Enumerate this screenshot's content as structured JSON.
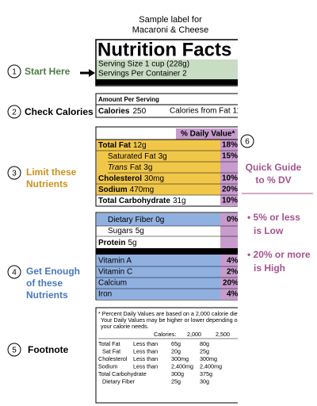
{
  "header": {
    "line1": "Sample label for",
    "line2": "Macaroni & Cheese"
  },
  "label": {
    "title": "Nutrition Facts",
    "serving_size": "Serving Size 1 cup (228g)",
    "servings": "Servings Per Container  2",
    "amount_per_serving": "Amount Per Serving",
    "calories_label": "Calories",
    "calories_value": "250",
    "calories_from_fat": "Calories from Fat 110",
    "dv_header": "% Daily Value*",
    "limit_rows": [
      {
        "name": "Total Fat",
        "amount": "12g",
        "dv": "18%"
      },
      {
        "name": "Saturated Fat",
        "amount": "3g",
        "dv": "15%"
      },
      {
        "name_italic": "Trans",
        "name": "Fat",
        "amount": "3g"
      },
      {
        "name": "Cholesterol",
        "amount": "30mg",
        "dv": "10%"
      },
      {
        "name": "Sodium",
        "amount": "470mg",
        "dv": "20%"
      },
      {
        "name": "Total Carbohydrate",
        "amount": "31g",
        "dv": "10%"
      }
    ],
    "enough_rows": [
      {
        "name": "Dietary Fiber",
        "amount": "0g",
        "dv": "0%"
      },
      {
        "name": "Sugars",
        "amount": "5g"
      },
      {
        "name": "Protein",
        "amount": "5g"
      }
    ],
    "vitamins": [
      {
        "name": "Vitamin A",
        "dv": "4%"
      },
      {
        "name": "Vitamin C",
        "dv": "2%"
      },
      {
        "name": "Calcium",
        "dv": "20%"
      },
      {
        "name": "Iron",
        "dv": "4%"
      }
    ],
    "footnote": {
      "lines": [
        "* Percent Daily Values are based on a 2,000 calorie diet.",
        "Your Daily Values may be higher or lower depending on",
        "your calorie needs."
      ],
      "header": [
        "Calories:",
        "2,000",
        "2,500"
      ],
      "rows": [
        [
          "Total Fat",
          "Less than",
          "65g",
          "80g"
        ],
        [
          "Sat Fat",
          "Less than",
          "20g",
          "25g"
        ],
        [
          "Cholesterol",
          "Less than",
          "300mg",
          "300mg"
        ],
        [
          "Sodium",
          "Less than",
          "2,400mg",
          "2,400mg"
        ],
        [
          "Total Carbohydrate",
          "",
          "300g",
          "375g"
        ],
        [
          "Dietary Fiber",
          "",
          "25g",
          "30g"
        ]
      ]
    }
  },
  "callouts": [
    {
      "number": "1",
      "lines": [
        "Start Here"
      ]
    },
    {
      "number": "2",
      "lines": [
        "Check Calories"
      ]
    },
    {
      "number": "3",
      "lines": [
        "Limit these",
        "Nutrients"
      ]
    },
    {
      "number": "4",
      "lines": [
        "Get Enough",
        "of these",
        "Nutrients"
      ]
    },
    {
      "number": "5",
      "lines": [
        "Footnote"
      ]
    },
    {
      "number": "6",
      "lines": [
        "Quick Guide",
        "to % DV"
      ]
    }
  ],
  "guide": [
    [
      "• 5% or less",
      "is Low"
    ],
    [
      "• 20% or more",
      "is High"
    ]
  ]
}
